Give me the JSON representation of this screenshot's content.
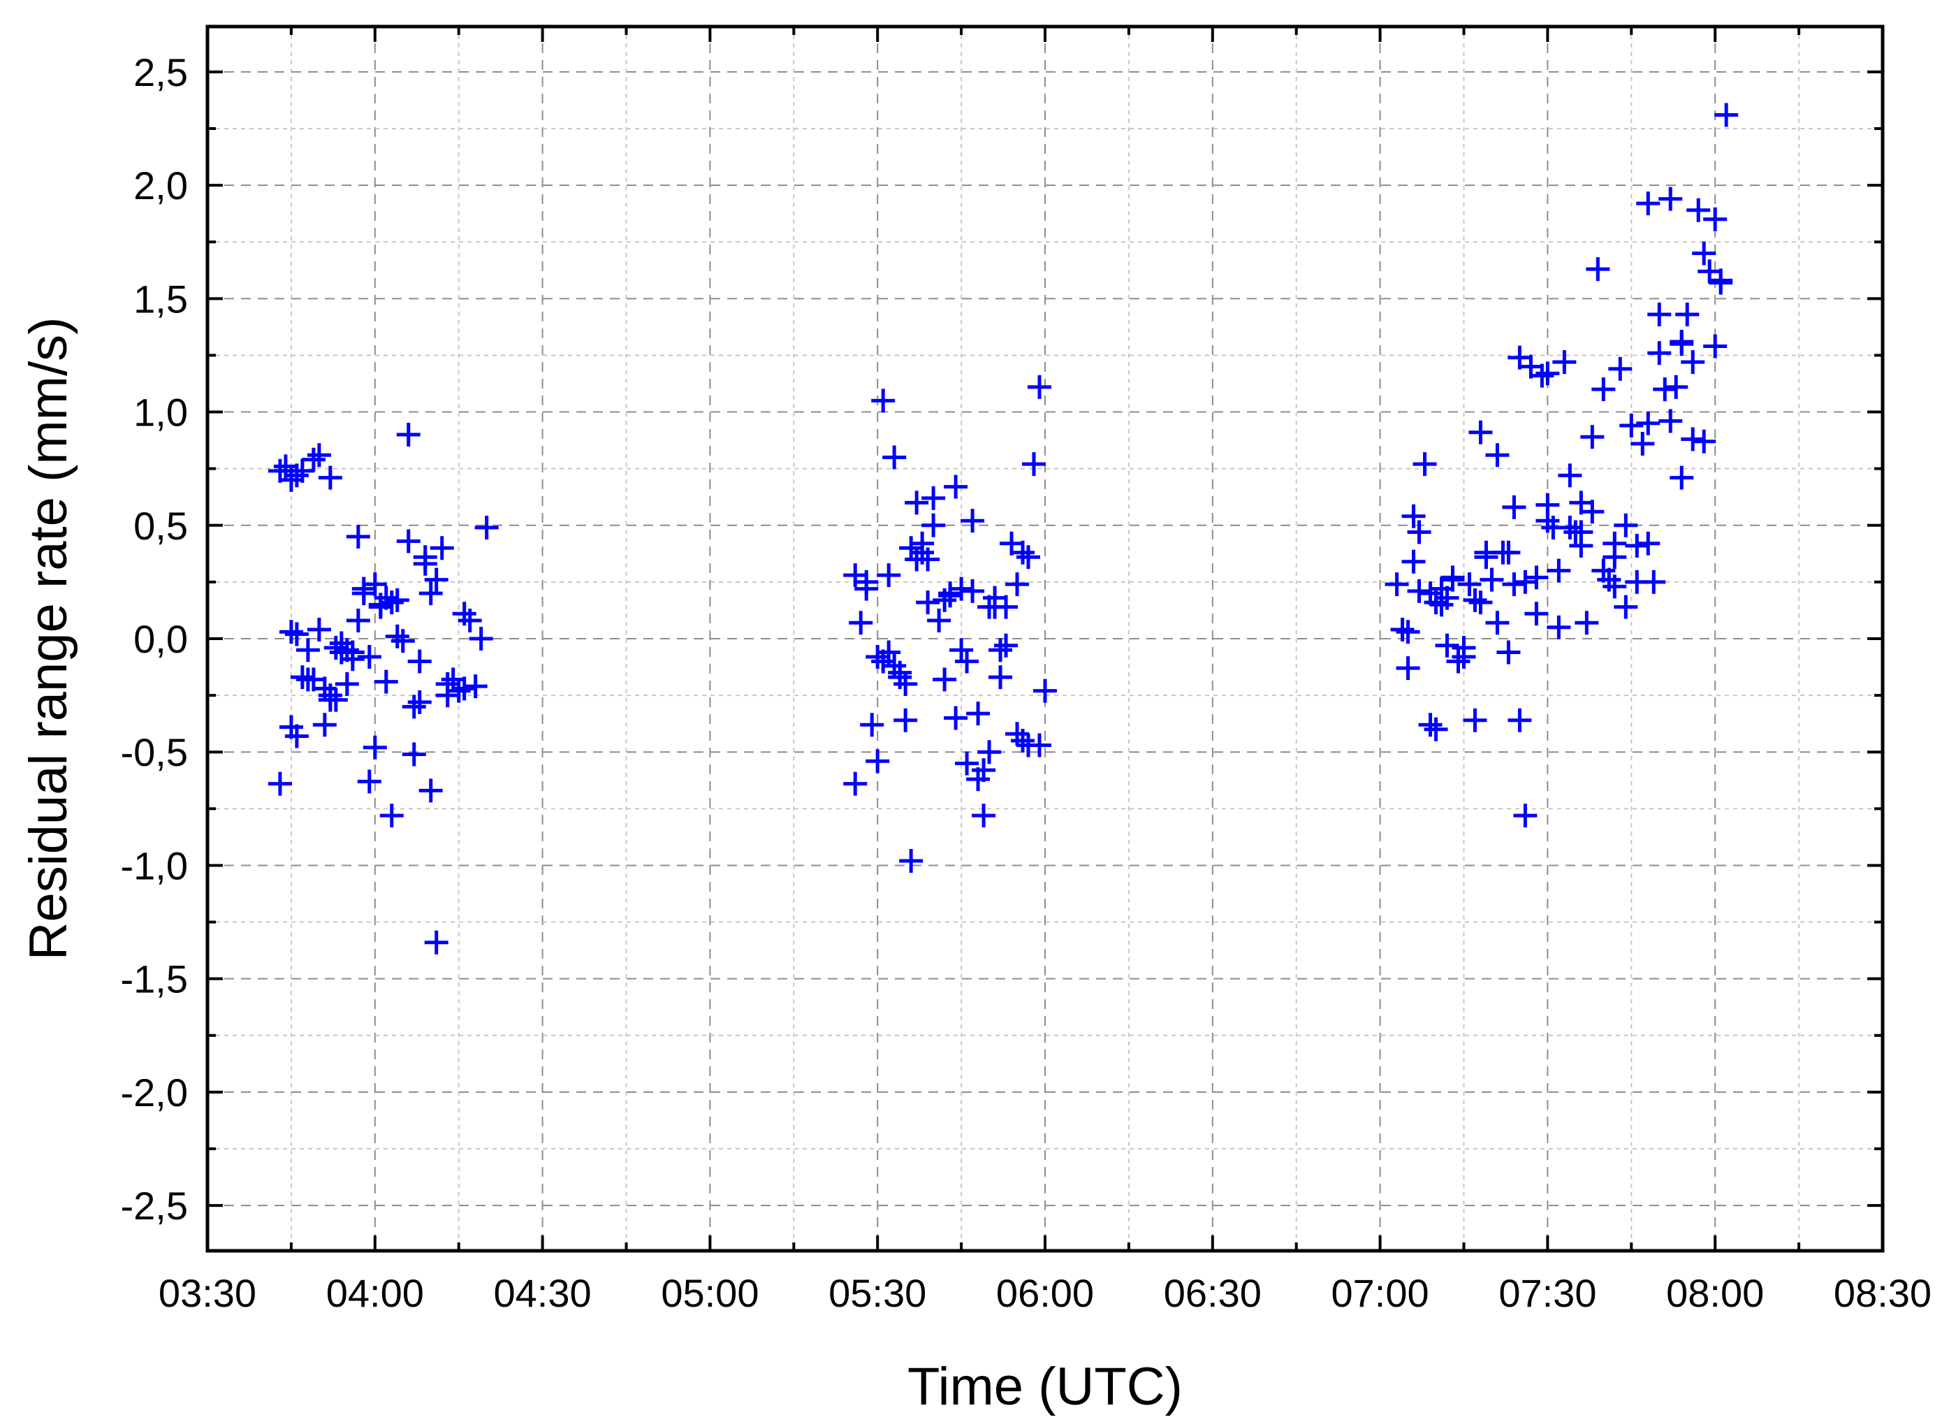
{
  "chart_data": {
    "type": "scatter",
    "xlabel": "Time (UTC)",
    "ylabel": "Residual range rate (mm/s)",
    "xlim": [
      "03:30",
      "08:30"
    ],
    "ylim": [
      -2.7,
      2.7
    ],
    "x_ticks": [
      "03:30",
      "04:00",
      "04:30",
      "05:00",
      "05:30",
      "06:00",
      "06:30",
      "07:00",
      "07:30",
      "08:00",
      "08:30"
    ],
    "y_ticks": [
      "2,5",
      "2,0",
      "1,5",
      "1,0",
      "0,5",
      "0,0",
      "-0,5",
      "-1,0",
      "-1,5",
      "-2,0",
      "-2,5"
    ],
    "grid": true,
    "marker": "plus",
    "color": "#0000ff",
    "series": [
      {
        "x": [
          "03:43",
          "03:44",
          "03:45",
          "03:46",
          "03:47",
          "03:49",
          "03:50",
          "03:52",
          "03:45",
          "03:46",
          "03:47",
          "03:48",
          "03:49",
          "03:50",
          "03:51",
          "03:52",
          "03:53",
          "03:54",
          "03:55",
          "03:56",
          "03:57",
          "03:58",
          "03:59",
          "04:00",
          "04:01",
          "04:02",
          "04:03",
          "04:04",
          "04:05",
          "04:06",
          "04:07",
          "04:08",
          "04:09",
          "04:10",
          "04:11",
          "04:12",
          "04:13",
          "04:14",
          "04:15",
          "04:16",
          "04:17",
          "04:18",
          "04:19",
          "04:20",
          "03:43",
          "03:45",
          "03:46",
          "03:51",
          "03:53",
          "03:59",
          "04:00",
          "04:03",
          "04:07",
          "04:10",
          "04:11",
          "03:55",
          "03:57",
          "03:58",
          "04:02",
          "04:04",
          "04:06",
          "04:08",
          "04:09",
          "04:13",
          "04:16",
          "03:48",
          "03:52",
          "03:54",
          "03:56",
          "04:01"
        ],
        "y": [
          0.74,
          0.76,
          0.7,
          0.72,
          0.74,
          0.79,
          0.81,
          0.71,
          0.03,
          0.02,
          -0.17,
          -0.05,
          -0.18,
          0.04,
          -0.22,
          -0.25,
          -0.04,
          -0.02,
          -0.2,
          -0.06,
          0.08,
          0.22,
          -0.08,
          0.24,
          0.14,
          0.18,
          0.16,
          0.01,
          -0.01,
          0.43,
          -0.3,
          -0.1,
          0.36,
          0.2,
          0.26,
          0.4,
          -0.25,
          -0.18,
          -0.23,
          0.11,
          0.08,
          -0.21,
          0.0,
          0.49,
          -0.64,
          -0.39,
          -0.43,
          -0.38,
          -0.27,
          -0.63,
          -0.48,
          -0.78,
          -0.51,
          -0.67,
          -1.34,
          -0.05,
          0.45,
          0.2,
          -0.19,
          0.17,
          0.9,
          -0.28,
          0.33,
          -0.2,
          -0.22,
          -0.18,
          -0.27,
          -0.06,
          -0.09,
          0.15
        ]
      },
      {
        "x": [
          "05:26",
          "05:27",
          "05:28",
          "05:29",
          "05:30",
          "05:31",
          "05:32",
          "05:33",
          "05:34",
          "05:35",
          "05:36",
          "05:37",
          "05:38",
          "05:39",
          "05:40",
          "05:41",
          "05:42",
          "05:43",
          "05:44",
          "05:45",
          "05:46",
          "05:47",
          "05:48",
          "05:49",
          "05:50",
          "05:51",
          "05:52",
          "05:53",
          "05:54",
          "05:55",
          "05:56",
          "05:57",
          "05:58",
          "05:59",
          "06:00",
          "05:26",
          "05:28",
          "05:30",
          "05:31",
          "05:33",
          "05:35",
          "05:36",
          "05:38",
          "05:40",
          "05:42",
          "05:44",
          "05:46",
          "05:48",
          "05:50",
          "05:52",
          "05:55",
          "05:57",
          "05:59",
          "05:32",
          "05:34",
          "05:37",
          "05:39",
          "05:43",
          "05:45",
          "05:47",
          "05:49",
          "05:51",
          "05:53",
          "05:56"
        ],
        "y": [
          0.28,
          0.07,
          0.25,
          -0.38,
          -0.08,
          1.05,
          0.28,
          0.8,
          -0.15,
          -0.2,
          0.4,
          0.6,
          0.42,
          0.35,
          0.5,
          0.08,
          0.17,
          0.19,
          0.67,
          0.22,
          -0.1,
          0.52,
          -0.62,
          -0.78,
          -0.5,
          0.14,
          -0.05,
          0.14,
          0.42,
          0.24,
          -0.45,
          0.36,
          0.77,
          1.11,
          -0.23,
          -0.64,
          0.22,
          -0.54,
          -0.1,
          -0.12,
          -0.36,
          -0.98,
          0.38,
          0.62,
          -0.18,
          -0.35,
          -0.55,
          -0.33,
          0.14,
          -0.17,
          -0.42,
          -0.47,
          -0.47,
          -0.06,
          -0.17,
          0.35,
          0.16,
          0.2,
          -0.05,
          0.21,
          -0.58,
          0.18,
          -0.03,
          0.38
        ]
      },
      {
        "x": [
          "07:03",
          "07:04",
          "07:05",
          "07:06",
          "07:07",
          "07:08",
          "07:09",
          "07:10",
          "07:11",
          "07:12",
          "07:13",
          "07:14",
          "07:15",
          "07:16",
          "07:17",
          "07:18",
          "07:19",
          "07:20",
          "07:21",
          "07:22",
          "07:23",
          "07:24",
          "07:25",
          "07:26",
          "07:27",
          "07:28",
          "07:29",
          "07:30",
          "07:31",
          "07:32",
          "07:33",
          "07:34",
          "07:35",
          "07:36",
          "07:37",
          "07:38",
          "07:39",
          "07:40",
          "07:41",
          "07:42",
          "07:43",
          "07:44",
          "07:45",
          "07:46",
          "07:47",
          "07:48",
          "07:49",
          "07:50",
          "07:51",
          "07:52",
          "07:53",
          "07:54",
          "07:55",
          "07:56",
          "07:57",
          "07:58",
          "07:59",
          "08:00",
          "08:01",
          "08:02",
          "07:05",
          "07:07",
          "07:09",
          "07:10",
          "07:11",
          "07:13",
          "07:15",
          "07:17",
          "07:19",
          "07:21",
          "07:23",
          "07:25",
          "07:26",
          "07:28",
          "07:30",
          "07:32",
          "07:34",
          "07:36",
          "07:38",
          "07:40",
          "07:42",
          "07:44",
          "07:46",
          "07:48",
          "07:50",
          "07:52",
          "07:54",
          "07:56",
          "07:58",
          "08:00",
          "07:06",
          "07:12",
          "07:18",
          "07:24",
          "07:30",
          "07:36",
          "07:42",
          "07:48",
          "07:54",
          "08:01"
        ],
        "y": [
          0.24,
          0.04,
          0.03,
          0.54,
          0.47,
          0.77,
          0.2,
          0.16,
          0.22,
          -0.03,
          0.26,
          -0.1,
          -0.08,
          0.24,
          0.17,
          0.91,
          0.38,
          0.26,
          0.81,
          0.38,
          -0.06,
          0.58,
          1.24,
          0.25,
          1.2,
          0.11,
          1.16,
          0.52,
          0.49,
          0.05,
          1.22,
          0.72,
          0.47,
          0.41,
          0.07,
          0.89,
          1.63,
          1.1,
          0.26,
          0.36,
          1.19,
          0.14,
          0.94,
          0.41,
          0.86,
          1.92,
          0.25,
          1.43,
          1.1,
          1.94,
          1.11,
          0.71,
          1.43,
          0.88,
          1.89,
          1.7,
          1.62,
          1.85,
          1.58,
          2.31,
          -0.13,
          0.21,
          -0.38,
          -0.4,
          0.15,
          0.27,
          -0.04,
          -0.36,
          0.36,
          0.07,
          0.38,
          -0.36,
          -0.78,
          0.27,
          1.17,
          0.3,
          0.49,
          0.6,
          0.56,
          0.3,
          0.42,
          0.5,
          0.25,
          0.95,
          1.26,
          0.96,
          1.31,
          1.22,
          0.87,
          1.29,
          0.34,
          0.18,
          0.16,
          0.24,
          0.59,
          0.47,
          0.23,
          0.42,
          1.3,
          1.57
        ]
      }
    ]
  }
}
